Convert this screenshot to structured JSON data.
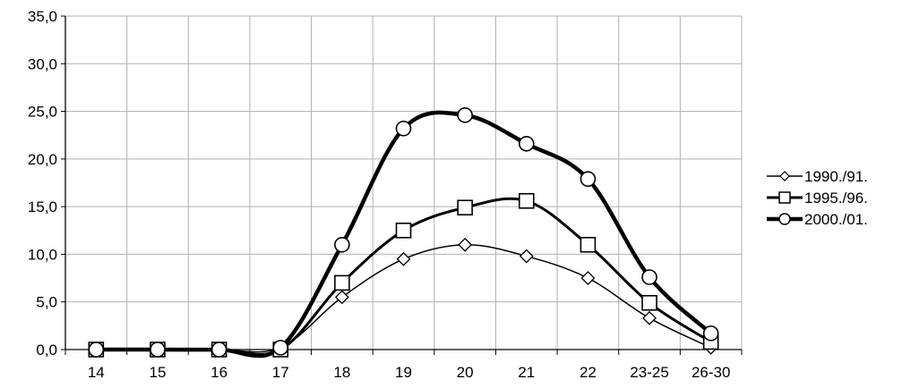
{
  "chart_data": {
    "type": "line",
    "title": "",
    "xlabel": "",
    "ylabel": "",
    "categories": [
      "14",
      "15",
      "16",
      "17",
      "18",
      "19",
      "20",
      "21",
      "22",
      "23-25",
      "26-30"
    ],
    "y_tick_labels": [
      "0,0",
      "5,0",
      "10,0",
      "15,0",
      "20,0",
      "25,0",
      "30,0",
      "35,0"
    ],
    "ylim": [
      0,
      35
    ],
    "grid": true,
    "legend_position": "right",
    "series": [
      {
        "name": "1990./91.",
        "marker": "diamond",
        "line_width": "thin",
        "values": [
          0.0,
          0.0,
          0.0,
          0.2,
          5.5,
          9.5,
          11.0,
          9.8,
          7.5,
          3.3,
          0.2
        ]
      },
      {
        "name": "1995./96.",
        "marker": "square",
        "line_width": "medium",
        "values": [
          0.0,
          0.0,
          0.0,
          0.0,
          7.0,
          12.5,
          14.9,
          15.6,
          11.0,
          4.9,
          0.8
        ]
      },
      {
        "name": "2000./01.",
        "marker": "circle",
        "line_width": "thick",
        "values": [
          0.0,
          0.0,
          0.0,
          0.2,
          11.0,
          23.2,
          24.6,
          21.6,
          17.9,
          7.6,
          1.7
        ]
      }
    ],
    "colors": {
      "grid": "#b0b0b0",
      "axis": "#000000",
      "line": "#000000",
      "marker_fill": "#ffffff"
    }
  }
}
